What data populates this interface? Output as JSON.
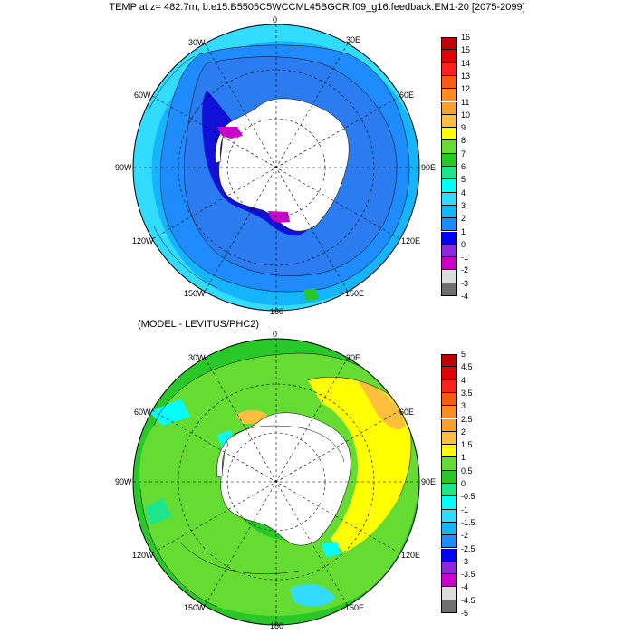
{
  "title": "TEMP at z= 482.7m, b.e15.B5505C5WCCML45BGCR.f09_g16.feedback.EM1-20 [2075-2099]",
  "subtitle": "(MODEL - LEVITUS/PHC2)",
  "lon_labels": {
    "lon0": "0",
    "lon30e": "30E",
    "lon60e": "60E",
    "lon90e": "90E",
    "lon120e": "120E",
    "lon150e": "150E",
    "lon180": "180",
    "lon150w": "150W",
    "lon120w": "120W",
    "lon90w": "90W",
    "lon60w": "60W",
    "lon30w": "30W"
  },
  "top_colorbar": {
    "labels": [
      "16",
      "15",
      "14",
      "13",
      "12",
      "11",
      "10",
      "9",
      "8",
      "7",
      "6",
      "5",
      "4",
      "3",
      "2",
      "1",
      "0",
      "-1",
      "-2",
      "-3",
      "-4"
    ],
    "colors": [
      "#c00000",
      "#e00000",
      "#ff2020",
      "#ff5a14",
      "#ff8c1e",
      "#ffa02d",
      "#ffbe3c",
      "#ffff00",
      "#64dc32",
      "#28c828",
      "#1ee68c",
      "#00ffff",
      "#32dcff",
      "#14b4ff",
      "#1e8cff",
      "#0000ff",
      "#8c28dc",
      "#c800c8",
      "#dcdcdc",
      "#707070"
    ]
  },
  "bottom_colorbar": {
    "labels": [
      "5",
      "4.5",
      "4",
      "3.5",
      "3",
      "2.5",
      "2",
      "1.5",
      "1",
      "0.5",
      "0",
      "-0.5",
      "-1",
      "-1.5",
      "-2",
      "-2.5",
      "-3",
      "-3.5",
      "-4",
      "-4.5",
      "-5"
    ],
    "colors": [
      "#c00000",
      "#e00000",
      "#ff2020",
      "#ff5a14",
      "#ff8c1e",
      "#ffa02d",
      "#ffbe3c",
      "#ffff00",
      "#64dc32",
      "#28c828",
      "#1ee68c",
      "#00ffff",
      "#32dcff",
      "#14b4ff",
      "#1e8cff",
      "#0000ff",
      "#8c28dc",
      "#c800c8",
      "#dcdcdc",
      "#707070"
    ]
  }
}
